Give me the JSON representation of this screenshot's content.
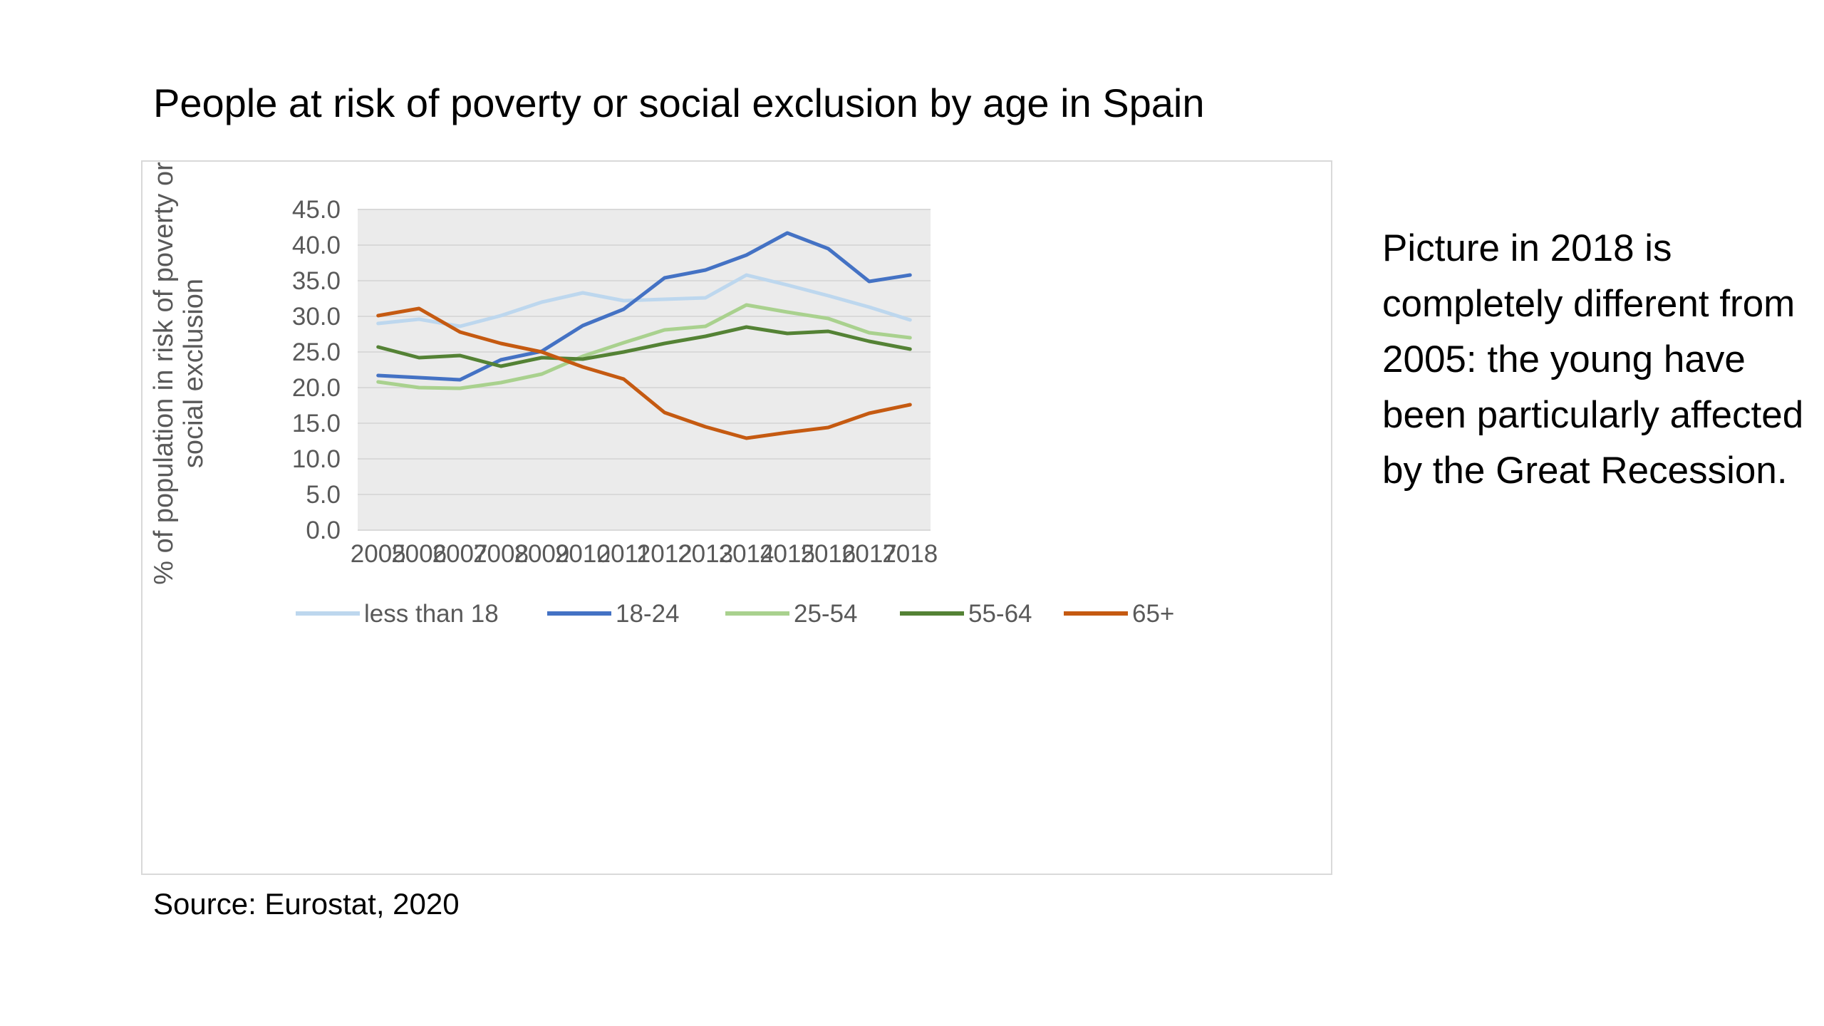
{
  "title": "People at risk of poverty or social exclusion by age in Spain",
  "source": "Source: Eurostat, 2020",
  "note": "Picture in 2018 is completely different from 2005: the young have been particularly affected by the Great Recession.",
  "chart_data": {
    "type": "line",
    "title": "People at risk of poverty or social exclusion by age in Spain",
    "xlabel": "",
    "ylabel_lines": [
      "% of population in risk of poverty or",
      "social exclusion"
    ],
    "categories": [
      "2005",
      "2006",
      "2007",
      "2008",
      "2009",
      "2010",
      "2011",
      "2012",
      "2013",
      "2014",
      "2015",
      "2016",
      "2017",
      "2018"
    ],
    "ylim": [
      0,
      45
    ],
    "yticks": [
      "0.0",
      "5.0",
      "10.0",
      "15.0",
      "20.0",
      "25.0",
      "30.0",
      "35.0",
      "40.0",
      "45.0"
    ],
    "grid": true,
    "legend_position": "bottom",
    "series": [
      {
        "name": "less than 18",
        "color": "#bdd7ee",
        "values": [
          29.0,
          29.6,
          28.6,
          30.1,
          32.0,
          33.3,
          32.2,
          32.4,
          32.6,
          35.8,
          34.4,
          32.9,
          31.3,
          29.5
        ]
      },
      {
        "name": "18-24",
        "color": "#4472c4",
        "values": [
          21.7,
          21.4,
          21.1,
          23.9,
          25.1,
          28.7,
          31.0,
          35.4,
          36.5,
          38.6,
          41.7,
          39.5,
          34.9,
          35.8
        ]
      },
      {
        "name": "25-54",
        "color": "#a9d18e",
        "values": [
          20.8,
          20.0,
          19.9,
          20.7,
          21.9,
          24.4,
          26.3,
          28.1,
          28.6,
          31.6,
          30.6,
          29.7,
          27.7,
          27.0
        ]
      },
      {
        "name": "55-64",
        "color": "#548235",
        "values": [
          25.7,
          24.2,
          24.5,
          23.0,
          24.2,
          24.0,
          25.0,
          26.2,
          27.2,
          28.5,
          27.6,
          27.9,
          26.5,
          25.4
        ]
      },
      {
        "name": "65+",
        "color": "#c55a11",
        "values": [
          30.1,
          31.1,
          27.8,
          26.2,
          25.0,
          22.9,
          21.2,
          16.5,
          14.5,
          12.9,
          13.7,
          14.4,
          16.4,
          17.6
        ]
      }
    ]
  }
}
